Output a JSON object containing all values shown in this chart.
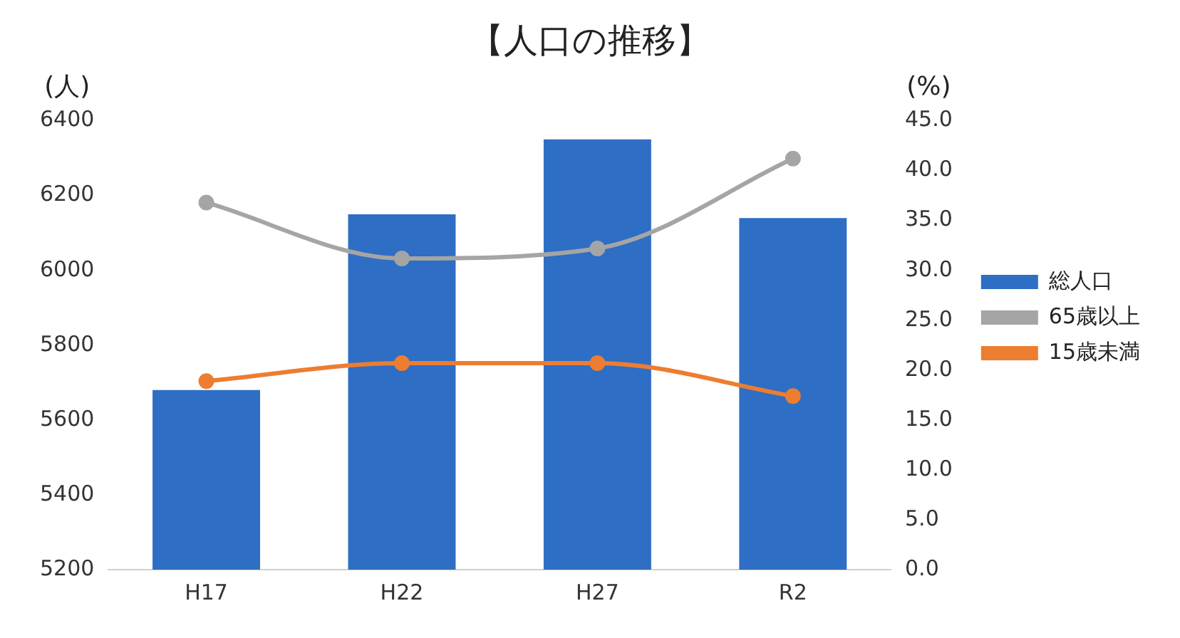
{
  "chart_data": {
    "type": "bar",
    "title": "【人口の推移】",
    "ylabel": "(人)",
    "y2label": "(%)",
    "categories": [
      "H17",
      "H22",
      "H27",
      "R2"
    ],
    "series": [
      {
        "name": "総人口",
        "color": "#2e6ec4",
        "values": [
          5680,
          6150,
          6350,
          6140
        ]
      },
      {
        "name": "65歳以上",
        "type": "line",
        "axis": "y2",
        "color": "#a5a5a5",
        "marker": "circle",
        "values": [
          36.8,
          31.2,
          32.2,
          41.2
        ]
      },
      {
        "name": "15歳未満",
        "type": "line",
        "axis": "y2",
        "color": "#ed7d31",
        "marker": "circle",
        "values": [
          18.9,
          20.7,
          20.7,
          17.4
        ]
      }
    ],
    "ylim": [
      5200,
      6400
    ],
    "yticks": [
      5200,
      5400,
      5600,
      5800,
      6000,
      6200,
      6400
    ],
    "y2lim": [
      0,
      45
    ],
    "y2ticks": [
      {
        "value": 0,
        "label": "0.0"
      },
      {
        "value": 5,
        "label": "5.0"
      },
      {
        "value": 10,
        "label": "10.0"
      },
      {
        "value": 15,
        "label": "15.0"
      },
      {
        "value": 20,
        "label": "20.0"
      },
      {
        "value": 25,
        "label": "25.0"
      },
      {
        "value": 30,
        "label": "30.0"
      },
      {
        "value": 35,
        "label": "35.0"
      },
      {
        "value": 40,
        "label": "40.0"
      },
      {
        "value": 45,
        "label": "45.0"
      }
    ],
    "grid": false,
    "legend": "right"
  }
}
